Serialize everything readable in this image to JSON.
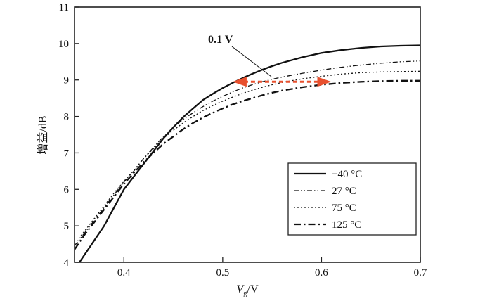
{
  "chart_data": {
    "type": "line",
    "xlabel_main": "V",
    "xlabel_sub": "g",
    "xlabel_unit": "/V",
    "ylabel": "增益/dB",
    "xlim": [
      0.35,
      0.7
    ],
    "ylim": [
      4,
      11
    ],
    "x_ticks": [
      0.4,
      0.5,
      0.6,
      0.7
    ],
    "x_tick_labels": [
      "0.4",
      "0.5",
      "0.6",
      "0.7"
    ],
    "y_ticks": [
      4,
      5,
      6,
      7,
      8,
      9,
      10,
      11
    ],
    "y_tick_labels": [
      "4",
      "5",
      "6",
      "7",
      "8",
      "9",
      "10",
      "11"
    ],
    "grid": false,
    "legend_position": "bottom-right",
    "series": [
      {
        "name": "−40 °C",
        "dash": "solid",
        "x": [
          0.355,
          0.37,
          0.38,
          0.39,
          0.4,
          0.41,
          0.42,
          0.43,
          0.44,
          0.45,
          0.46,
          0.47,
          0.48,
          0.49,
          0.5,
          0.51,
          0.52,
          0.53,
          0.54,
          0.55,
          0.56,
          0.58,
          0.6,
          0.62,
          0.64,
          0.66,
          0.68,
          0.7
        ],
        "y": [
          4.0,
          4.6,
          5.0,
          5.5,
          6.0,
          6.35,
          6.7,
          7.05,
          7.4,
          7.7,
          7.98,
          8.22,
          8.45,
          8.62,
          8.78,
          8.92,
          9.05,
          9.17,
          9.28,
          9.38,
          9.47,
          9.62,
          9.74,
          9.82,
          9.88,
          9.92,
          9.94,
          9.95
        ]
      },
      {
        "name": "27 °C",
        "dash": "dashdotdot",
        "x": [
          0.35,
          0.36,
          0.37,
          0.38,
          0.39,
          0.4,
          0.41,
          0.42,
          0.43,
          0.44,
          0.45,
          0.46,
          0.47,
          0.48,
          0.49,
          0.5,
          0.51,
          0.52,
          0.53,
          0.54,
          0.55,
          0.56,
          0.58,
          0.6,
          0.62,
          0.64,
          0.66,
          0.68,
          0.7
        ],
        "y": [
          4.45,
          4.8,
          5.15,
          5.5,
          5.85,
          6.2,
          6.5,
          6.85,
          7.15,
          7.45,
          7.7,
          7.92,
          8.1,
          8.27,
          8.42,
          8.55,
          8.67,
          8.78,
          8.87,
          8.95,
          9.02,
          9.08,
          9.18,
          9.27,
          9.35,
          9.41,
          9.46,
          9.5,
          9.52
        ]
      },
      {
        "name": "75 °C",
        "dash": "dotted",
        "x": [
          0.35,
          0.36,
          0.37,
          0.38,
          0.39,
          0.4,
          0.41,
          0.42,
          0.43,
          0.44,
          0.45,
          0.46,
          0.47,
          0.48,
          0.49,
          0.5,
          0.51,
          0.52,
          0.53,
          0.54,
          0.55,
          0.56,
          0.58,
          0.6,
          0.62,
          0.64,
          0.66,
          0.68,
          0.7
        ],
        "y": [
          4.5,
          4.85,
          5.2,
          5.55,
          5.9,
          6.22,
          6.52,
          6.85,
          7.12,
          7.4,
          7.62,
          7.82,
          8.0,
          8.16,
          8.3,
          8.42,
          8.53,
          8.63,
          8.72,
          8.8,
          8.87,
          8.93,
          9.03,
          9.1,
          9.16,
          9.2,
          9.22,
          9.23,
          9.24
        ]
      },
      {
        "name": "125 °C",
        "dash": "dashdot",
        "x": [
          0.35,
          0.36,
          0.37,
          0.38,
          0.39,
          0.4,
          0.41,
          0.42,
          0.43,
          0.44,
          0.45,
          0.46,
          0.47,
          0.48,
          0.49,
          0.5,
          0.51,
          0.52,
          0.53,
          0.54,
          0.55,
          0.56,
          0.58,
          0.6,
          0.62,
          0.64,
          0.66,
          0.68,
          0.7
        ],
        "y": [
          4.35,
          4.75,
          5.1,
          5.45,
          5.8,
          6.15,
          6.45,
          6.75,
          7.0,
          7.25,
          7.45,
          7.65,
          7.82,
          7.97,
          8.1,
          8.22,
          8.33,
          8.42,
          8.5,
          8.58,
          8.65,
          8.71,
          8.8,
          8.87,
          8.92,
          8.95,
          8.97,
          8.98,
          8.98
        ]
      }
    ],
    "annotation": {
      "text": "0.1 V",
      "arrow_from_x": 0.51,
      "arrow_to_x": 0.61,
      "arrow_y": 8.95,
      "arrow_color": "#e8502e"
    }
  }
}
